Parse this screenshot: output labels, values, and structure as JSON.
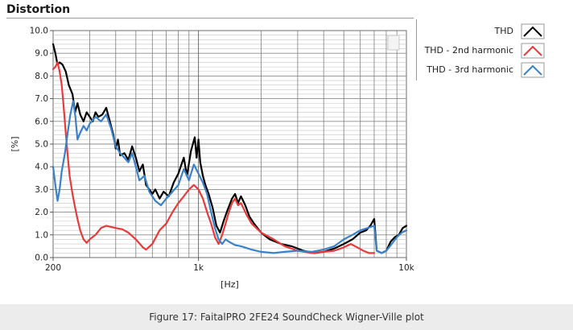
{
  "panel": {
    "title": "Distortion"
  },
  "caption": "Figure 17: FaitalPRO 2FE24 SoundCheck Wigner-Ville plot",
  "chart_data": {
    "type": "line",
    "title": "",
    "xlabel": "[Hz]",
    "ylabel": "[%]",
    "xscale": "log",
    "xlim": [
      200,
      10000
    ],
    "ylim": [
      0,
      10
    ],
    "x_tick_labels": [
      {
        "value": 200,
        "label": "200"
      },
      {
        "value": 1000,
        "label": "1k"
      },
      {
        "value": 10000,
        "label": "10k"
      }
    ],
    "y_tick_labels": [
      "0.0",
      "1.0",
      "2.0",
      "3.0",
      "4.0",
      "5.0",
      "6.0",
      "7.0",
      "8.0",
      "9.0",
      "10.0"
    ],
    "grid": true,
    "legend_position": "right",
    "series": [
      {
        "name": "THD",
        "color": "#000000",
        "points": [
          [
            200,
            9.4
          ],
          [
            205,
            9.0
          ],
          [
            210,
            8.5
          ],
          [
            215,
            8.6
          ],
          [
            222,
            8.5
          ],
          [
            230,
            8.2
          ],
          [
            238,
            7.6
          ],
          [
            248,
            7.2
          ],
          [
            255,
            6.4
          ],
          [
            262,
            6.8
          ],
          [
            270,
            6.3
          ],
          [
            280,
            6.0
          ],
          [
            290,
            6.4
          ],
          [
            300,
            6.2
          ],
          [
            310,
            6.0
          ],
          [
            320,
            6.4
          ],
          [
            330,
            6.2
          ],
          [
            345,
            6.3
          ],
          [
            360,
            6.6
          ],
          [
            375,
            6.0
          ],
          [
            390,
            5.4
          ],
          [
            400,
            4.8
          ],
          [
            410,
            5.2
          ],
          [
            420,
            4.5
          ],
          [
            440,
            4.6
          ],
          [
            460,
            4.3
          ],
          [
            480,
            4.9
          ],
          [
            500,
            4.4
          ],
          [
            520,
            3.8
          ],
          [
            540,
            4.1
          ],
          [
            560,
            3.2
          ],
          [
            580,
            3.0
          ],
          [
            600,
            2.8
          ],
          [
            620,
            3.0
          ],
          [
            650,
            2.6
          ],
          [
            680,
            2.9
          ],
          [
            720,
            2.7
          ],
          [
            760,
            3.3
          ],
          [
            800,
            3.7
          ],
          [
            850,
            4.4
          ],
          [
            880,
            3.6
          ],
          [
            920,
            4.7
          ],
          [
            960,
            5.3
          ],
          [
            980,
            4.4
          ],
          [
            1000,
            5.2
          ],
          [
            1020,
            4.2
          ],
          [
            1050,
            3.6
          ],
          [
            1080,
            3.2
          ],
          [
            1120,
            2.8
          ],
          [
            1170,
            2.2
          ],
          [
            1220,
            1.4
          ],
          [
            1270,
            1.1
          ],
          [
            1320,
            1.6
          ],
          [
            1380,
            2.1
          ],
          [
            1450,
            2.6
          ],
          [
            1500,
            2.8
          ],
          [
            1550,
            2.4
          ],
          [
            1600,
            2.7
          ],
          [
            1680,
            2.3
          ],
          [
            1760,
            1.8
          ],
          [
            1850,
            1.5
          ],
          [
            2000,
            1.1
          ],
          [
            2200,
            0.8
          ],
          [
            2500,
            0.6
          ],
          [
            2800,
            0.5
          ],
          [
            3200,
            0.3
          ],
          [
            3600,
            0.2
          ],
          [
            4000,
            0.25
          ],
          [
            4500,
            0.4
          ],
          [
            5000,
            0.6
          ],
          [
            5500,
            0.8
          ],
          [
            6000,
            1.1
          ],
          [
            6400,
            1.2
          ],
          [
            6700,
            1.4
          ],
          [
            7000,
            1.7
          ],
          [
            7200,
            0.3
          ],
          [
            7600,
            0.2
          ],
          [
            8000,
            0.3
          ],
          [
            8400,
            0.7
          ],
          [
            8800,
            0.9
          ],
          [
            9200,
            1.0
          ],
          [
            9600,
            1.3
          ],
          [
            10000,
            1.4
          ]
        ]
      },
      {
        "name": "THD - 2nd harmonic",
        "color": "#e83a3a",
        "points": [
          [
            200,
            8.3
          ],
          [
            205,
            8.4
          ],
          [
            210,
            8.6
          ],
          [
            215,
            8.2
          ],
          [
            220,
            7.6
          ],
          [
            225,
            6.6
          ],
          [
            230,
            5.5
          ],
          [
            235,
            4.5
          ],
          [
            240,
            3.6
          ],
          [
            248,
            2.8
          ],
          [
            255,
            2.2
          ],
          [
            262,
            1.7
          ],
          [
            270,
            1.2
          ],
          [
            280,
            0.8
          ],
          [
            290,
            0.65
          ],
          [
            300,
            0.8
          ],
          [
            320,
            1.0
          ],
          [
            340,
            1.3
          ],
          [
            360,
            1.4
          ],
          [
            380,
            1.35
          ],
          [
            400,
            1.3
          ],
          [
            430,
            1.25
          ],
          [
            460,
            1.1
          ],
          [
            500,
            0.8
          ],
          [
            540,
            0.45
          ],
          [
            560,
            0.35
          ],
          [
            600,
            0.6
          ],
          [
            650,
            1.2
          ],
          [
            700,
            1.5
          ],
          [
            750,
            2.0
          ],
          [
            800,
            2.4
          ],
          [
            850,
            2.7
          ],
          [
            900,
            3.0
          ],
          [
            950,
            3.2
          ],
          [
            1000,
            3.0
          ],
          [
            1050,
            2.6
          ],
          [
            1100,
            2.0
          ],
          [
            1150,
            1.5
          ],
          [
            1200,
            0.9
          ],
          [
            1250,
            0.6
          ],
          [
            1300,
            1.0
          ],
          [
            1350,
            1.5
          ],
          [
            1400,
            2.0
          ],
          [
            1450,
            2.4
          ],
          [
            1500,
            2.6
          ],
          [
            1550,
            2.3
          ],
          [
            1600,
            2.4
          ],
          [
            1700,
            1.9
          ],
          [
            1800,
            1.5
          ],
          [
            2000,
            1.1
          ],
          [
            2300,
            0.8
          ],
          [
            2600,
            0.5
          ],
          [
            3000,
            0.3
          ],
          [
            3500,
            0.2
          ],
          [
            4000,
            0.25
          ],
          [
            4500,
            0.3
          ],
          [
            5000,
            0.45
          ],
          [
            5400,
            0.6
          ],
          [
            5800,
            0.45
          ],
          [
            6200,
            0.3
          ],
          [
            6600,
            0.2
          ],
          [
            7000,
            0.2
          ]
        ]
      },
      {
        "name": "THD - 3rd harmonic",
        "color": "#3a82c8",
        "points": [
          [
            200,
            4.0
          ],
          [
            205,
            3.2
          ],
          [
            210,
            2.5
          ],
          [
            215,
            3.0
          ],
          [
            220,
            3.8
          ],
          [
            228,
            4.6
          ],
          [
            235,
            5.5
          ],
          [
            242,
            6.3
          ],
          [
            250,
            6.9
          ],
          [
            256,
            6.2
          ],
          [
            262,
            5.2
          ],
          [
            270,
            5.5
          ],
          [
            280,
            5.8
          ],
          [
            290,
            5.6
          ],
          [
            300,
            5.9
          ],
          [
            320,
            6.2
          ],
          [
            340,
            6.0
          ],
          [
            360,
            6.3
          ],
          [
            380,
            5.7
          ],
          [
            400,
            4.9
          ],
          [
            420,
            4.6
          ],
          [
            440,
            4.4
          ],
          [
            460,
            4.2
          ],
          [
            480,
            4.6
          ],
          [
            500,
            4.0
          ],
          [
            520,
            3.4
          ],
          [
            550,
            3.6
          ],
          [
            580,
            2.9
          ],
          [
            620,
            2.5
          ],
          [
            660,
            2.3
          ],
          [
            700,
            2.6
          ],
          [
            750,
            2.9
          ],
          [
            800,
            3.2
          ],
          [
            850,
            3.9
          ],
          [
            900,
            3.4
          ],
          [
            950,
            4.1
          ],
          [
            1000,
            3.7
          ],
          [
            1050,
            3.3
          ],
          [
            1100,
            2.8
          ],
          [
            1150,
            2.0
          ],
          [
            1200,
            1.3
          ],
          [
            1250,
            0.8
          ],
          [
            1300,
            0.6
          ],
          [
            1350,
            0.8
          ],
          [
            1400,
            0.7
          ],
          [
            1500,
            0.55
          ],
          [
            1600,
            0.5
          ],
          [
            1800,
            0.35
          ],
          [
            2000,
            0.25
          ],
          [
            2300,
            0.2
          ],
          [
            2600,
            0.25
          ],
          [
            3000,
            0.3
          ],
          [
            3500,
            0.25
          ],
          [
            4000,
            0.35
          ],
          [
            4500,
            0.5
          ],
          [
            5000,
            0.8
          ],
          [
            5500,
            1.0
          ],
          [
            6000,
            1.2
          ],
          [
            6500,
            1.3
          ],
          [
            7000,
            1.4
          ],
          [
            7200,
            0.3
          ],
          [
            7600,
            0.2
          ],
          [
            8000,
            0.3
          ],
          [
            8500,
            0.6
          ],
          [
            9000,
            0.9
          ],
          [
            9500,
            1.1
          ],
          [
            10000,
            1.2
          ]
        ]
      }
    ]
  }
}
